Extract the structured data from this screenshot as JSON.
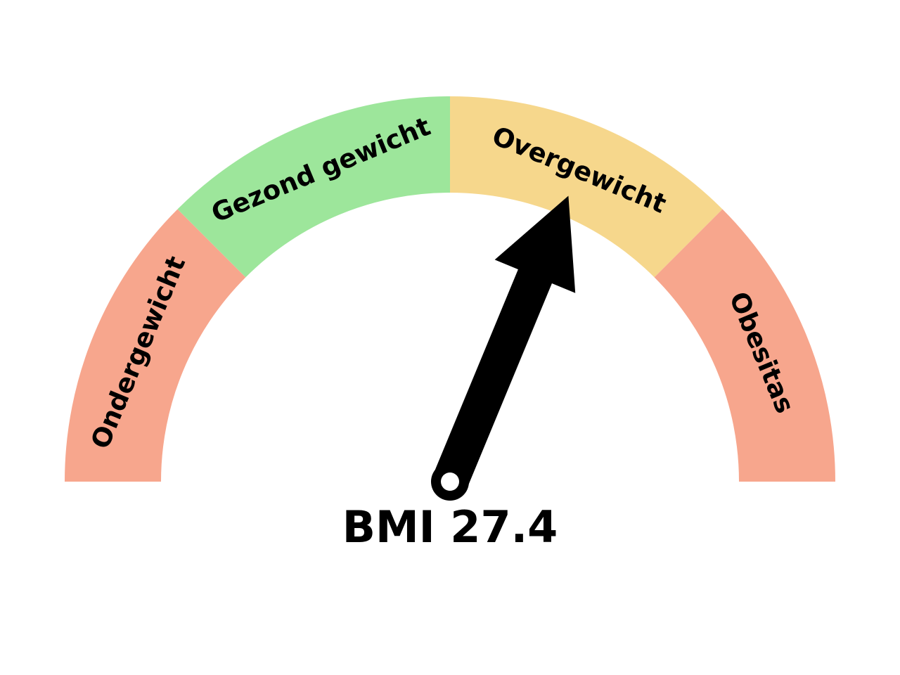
{
  "chart_data": {
    "type": "gauge",
    "range": [
      0,
      4
    ],
    "bands": [
      {
        "label": "Ondergewicht",
        "from": 0,
        "to": 1,
        "color": "#f7a68d"
      },
      {
        "label": "Gezond gewicht",
        "from": 1,
        "to": 2,
        "color": "#9de69b"
      },
      {
        "label": "Overgewicht",
        "from": 2,
        "to": 3,
        "color": "#f6d78c"
      },
      {
        "label": "Obesitas",
        "from": 3,
        "to": 4,
        "color": "#f7a68d"
      }
    ],
    "needle_value": 2.5,
    "value_label": "BMI 27.4",
    "needle_color": "#000000"
  }
}
